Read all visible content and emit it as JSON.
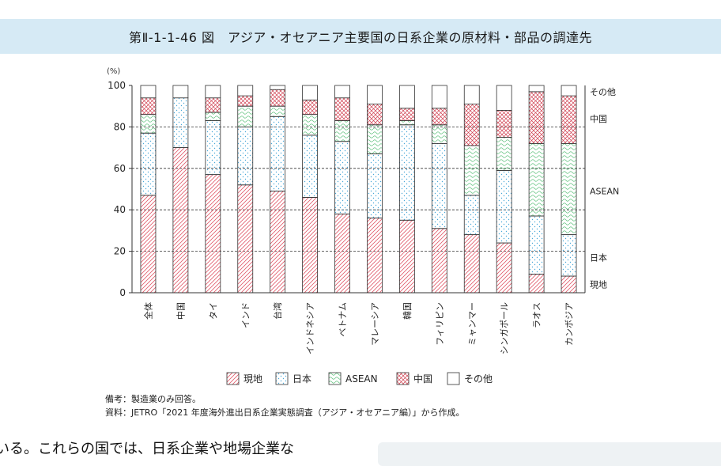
{
  "figure_title": "第Ⅱ-1-1-46 図　アジア・オセアニア主要国の日系企業の原材料・部品の調達先",
  "notes": {
    "remark": "備考：製造業のみ回答。",
    "source": "資料：JETRO「2021 年度海外進出日系企業実態調査（アジア・オセアニア編）」から作成。"
  },
  "body_text": "いる。これらの国では、日系企業や地場企業な",
  "colors": {
    "local": "#e05a6a",
    "japan": "#4aa8d8",
    "asean": "#5cbf7a",
    "china": "#d04050",
    "bar_outline": "#333333",
    "title_bg": "#d6eaf5"
  },
  "chart_data": {
    "type": "bar",
    "stacked": true,
    "unit": "(%)",
    "ylim": [
      0,
      100
    ],
    "yticks": [
      0,
      20,
      40,
      60,
      80,
      100
    ],
    "grid": "dashed at 20, 40, 60, 80",
    "legend_position": "bottom",
    "categories": [
      "全体",
      "中国",
      "タイ",
      "インド",
      "台湾",
      "インドネシア",
      "ベトナム",
      "マレーシア",
      "韓国",
      "フィリピン",
      "ミャンマー",
      "シンガポール",
      "ラオス",
      "カンボジア"
    ],
    "series": [
      {
        "name": "現地",
        "values": [
          47,
          70,
          57,
          52,
          49,
          46,
          38,
          36,
          35,
          31,
          28,
          24,
          9,
          8
        ]
      },
      {
        "name": "日本",
        "values": [
          30,
          24,
          26,
          28,
          36,
          30,
          35,
          31,
          46,
          41,
          19,
          35,
          28,
          20
        ]
      },
      {
        "name": "ASEAN",
        "values": [
          9,
          0,
          4,
          10,
          5,
          10,
          10,
          14,
          2,
          9,
          24,
          16,
          35,
          44
        ]
      },
      {
        "name": "中国",
        "values": [
          8,
          0,
          7,
          5,
          8,
          7,
          11,
          10,
          6,
          8,
          20,
          13,
          25,
          23
        ]
      },
      {
        "name": "その他",
        "values": [
          6,
          6,
          6,
          5,
          2,
          7,
          6,
          9,
          11,
          11,
          9,
          12,
          3,
          5
        ]
      }
    ],
    "right_labels": [
      {
        "text": "その他",
        "value": 97
      },
      {
        "text": "中国",
        "value": 84
      },
      {
        "text": "ASEAN",
        "value": 49
      },
      {
        "text": "日本",
        "value": 17
      },
      {
        "text": "現地",
        "value": 4
      }
    ]
  }
}
